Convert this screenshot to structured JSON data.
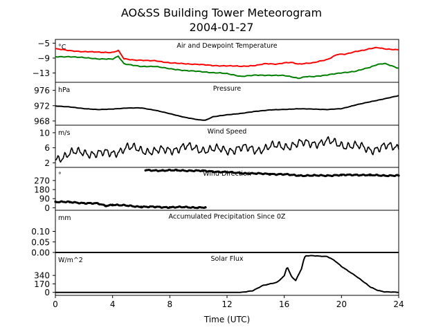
{
  "title": "AO&SS Building Tower Meteorogram",
  "subtitle": "2004-01-27",
  "xlabel": "Time (UTC)",
  "colors": {
    "temperature": "#ff0000",
    "dewpoint": "#008000",
    "line": "#000000"
  },
  "chart_data": [
    {
      "type": "line",
      "title": "Air and Dewpoint Temperature",
      "unit": "°C",
      "xlim": [
        0,
        24
      ],
      "ylim": [
        -15.5,
        -4
      ],
      "yticks": [
        -5,
        -9,
        -13
      ],
      "ytick_labels": [
        "−5",
        "−9",
        "−13"
      ],
      "series": [
        {
          "key": "temperature",
          "color": "#ff0000",
          "x": [
            0,
            1,
            2,
            3,
            4,
            4.4,
            4.8,
            5.5,
            6.5,
            7,
            8,
            9,
            10,
            11,
            12,
            13,
            14,
            14.7,
            15.5,
            16,
            16.5,
            17,
            17.5,
            18,
            19,
            19.7,
            20.3,
            21,
            21.5,
            22,
            22.5,
            23,
            24
          ],
          "y": [
            -6.5,
            -7.0,
            -7.3,
            -7.4,
            -7.5,
            -7.0,
            -9.2,
            -9.5,
            -9.7,
            -9.7,
            -10.3,
            -10.5,
            -10.7,
            -11.0,
            -11.1,
            -11.2,
            -11.0,
            -10.5,
            -10.6,
            -10.3,
            -10.2,
            -10.6,
            -10.4,
            -10.3,
            -9.4,
            -8.0,
            -8.0,
            -7.2,
            -6.9,
            -6.5,
            -6.2,
            -6.5,
            -6.8
          ]
        },
        {
          "key": "dewpoint",
          "color": "#008000",
          "x": [
            0,
            1,
            2,
            3,
            4,
            4.4,
            4.8,
            6,
            7,
            8,
            9,
            10,
            11,
            11.5,
            12,
            13,
            14,
            15,
            16,
            16.5,
            17,
            17.5,
            18,
            19,
            20,
            21,
            22,
            22.5,
            23,
            24
          ],
          "y": [
            -8.7,
            -8.6,
            -8.9,
            -9.2,
            -9.3,
            -8.5,
            -10.5,
            -11.3,
            -11.2,
            -11.9,
            -12.3,
            -12.6,
            -12.9,
            -13.0,
            -13.2,
            -13.9,
            -13.6,
            -13.6,
            -13.7,
            -14.0,
            -14.4,
            -14.0,
            -14.0,
            -13.5,
            -13.0,
            -12.5,
            -11.5,
            -10.7,
            -10.4,
            -11.8
          ]
        }
      ]
    },
    {
      "type": "line",
      "title": "Pressure",
      "unit": "hPa",
      "xlim": [
        0,
        24
      ],
      "ylim": [
        966.9,
        978.1
      ],
      "yticks": [
        976,
        972,
        968
      ],
      "ytick_labels": [
        "976",
        "972",
        "968"
      ],
      "series": [
        {
          "key": "pressure",
          "color": "#000000",
          "x": [
            0,
            1,
            2,
            3,
            4,
            5,
            6,
            7,
            8,
            9,
            10,
            10.5,
            11,
            12,
            13,
            14,
            15,
            16,
            17,
            18,
            19,
            20,
            21,
            22,
            23,
            24
          ],
          "y": [
            971.9,
            971.7,
            971.2,
            971.0,
            971.1,
            971.4,
            971.4,
            970.8,
            969.9,
            969.0,
            968.3,
            968.2,
            969.1,
            969.6,
            970.0,
            970.5,
            970.9,
            971.0,
            971.2,
            971.1,
            971.0,
            971.2,
            972.2,
            973.0,
            973.8,
            974.6
          ]
        }
      ]
    },
    {
      "type": "line",
      "title": "Wind Speed",
      "unit": "m/s",
      "xlim": [
        0,
        24
      ],
      "ylim": [
        0.8,
        12.0
      ],
      "yticks": [
        10,
        6,
        2
      ],
      "ytick_labels": [
        "10",
        "6",
        "2"
      ],
      "series": [
        {
          "key": "wind_speed",
          "color": "#000000",
          "x": [
            0,
            1,
            2,
            3,
            4,
            5,
            6,
            7,
            8,
            9,
            10,
            11,
            12,
            13,
            14,
            15,
            16,
            17,
            18,
            19,
            20,
            21,
            22,
            23,
            24
          ],
          "y": [
            3.0,
            4.5,
            4.8,
            4.4,
            4.6,
            6.0,
            5.5,
            5.0,
            5.5,
            6.2,
            5.7,
            5.5,
            5.4,
            5.9,
            5.5,
            6.2,
            6.5,
            7.0,
            7.3,
            7.6,
            6.9,
            6.4,
            5.6,
            6.2,
            6.2
          ]
        }
      ]
    },
    {
      "type": "scatter",
      "title": "Wind Direction",
      "unit": "°",
      "xlim": [
        0,
        24
      ],
      "ylim": [
        -25,
        400
      ],
      "yticks": [
        270,
        180,
        90,
        0
      ],
      "ytick_labels": [
        "270",
        "180",
        "90",
        "0"
      ],
      "series": [
        {
          "key": "dir_low",
          "color": "#000000",
          "x": [
            0,
            1,
            2,
            3,
            3.5,
            4,
            5,
            6,
            7,
            8,
            9,
            10,
            10.5
          ],
          "y": [
            60,
            55,
            47,
            40,
            20,
            30,
            20,
            10,
            7,
            5,
            5,
            3,
            3
          ]
        },
        {
          "key": "dir_high",
          "color": "#000000",
          "x": [
            6.3,
            7.5,
            8.5,
            9.5,
            10.3,
            11,
            12,
            13,
            14,
            15,
            16,
            17,
            18,
            19,
            20,
            21,
            22,
            23,
            24
          ],
          "y": [
            370,
            370,
            370,
            368,
            365,
            360,
            352,
            343,
            338,
            335,
            330,
            320,
            318,
            320,
            323,
            327,
            322,
            320,
            318
          ]
        }
      ]
    },
    {
      "type": "line",
      "title": "Accumulated Precipitation Since 0Z",
      "unit": "mm",
      "xlim": [
        0,
        24
      ],
      "ylim": [
        0,
        0.2
      ],
      "yticks": [
        0.1,
        0.05,
        0.0
      ],
      "ytick_labels": [
        "0.10",
        "0.05",
        "0.00"
      ],
      "series": [
        {
          "key": "precip",
          "color": "#000000",
          "x": [
            0,
            24
          ],
          "y": [
            0,
            0
          ]
        }
      ]
    },
    {
      "type": "line",
      "title": "Solar Flux",
      "unit": "W/m^2",
      "xlim": [
        0,
        24
      ],
      "ylim": [
        -60,
        800
      ],
      "yticks": [
        340,
        170,
        0
      ],
      "ytick_labels": [
        "340",
        "170",
        "0"
      ],
      "series": [
        {
          "key": "solar",
          "color": "#000000",
          "x": [
            0,
            13,
            13.8,
            14.5,
            15,
            15.5,
            16,
            16.2,
            16.5,
            16.8,
            17.2,
            17.4,
            17.5,
            18,
            19,
            19.5,
            20,
            21,
            22,
            22.5,
            23,
            24
          ],
          "y": [
            0,
            0,
            30,
            140,
            170,
            200,
            330,
            520,
            320,
            240,
            470,
            690,
            730,
            735,
            720,
            640,
            520,
            330,
            110,
            45,
            10,
            0
          ]
        }
      ]
    }
  ],
  "xaxis": {
    "ticks": [
      0,
      4,
      8,
      12,
      16,
      20,
      24
    ],
    "tick_labels": [
      "0",
      "4",
      "8",
      "12",
      "16",
      "20",
      "24"
    ]
  }
}
